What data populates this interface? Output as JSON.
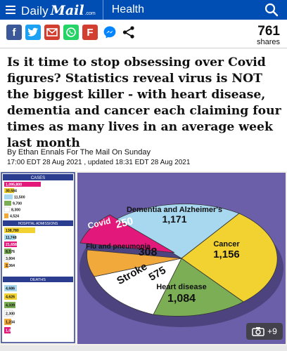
{
  "header": {
    "brand_daily": "Daily",
    "brand_mail": "Mail",
    "brand_com": ".com",
    "section": "Health"
  },
  "share": {
    "facebook": "f",
    "twitter": "t",
    "flipboard": "F",
    "count": "761",
    "count_label": "shares"
  },
  "headline": "Is it time to stop obsessing over Covid figures? Statistics reveal virus is NOT the biggest killer - with heart disease, dementia and cancer each claiming four times as many lives in an average week last month",
  "byline": "By Ethan Ennals For The Mail On Sunday",
  "dateline": "17:00 EDT 28 Aug 2021 , updated 18:31 EDT 28 Aug 2021",
  "infographic": {
    "sidebar": {
      "cases_header": "CASES",
      "admissions_header": "HOSPITAL ADMISSIONS",
      "deaths_header": "DEATHS",
      "cases": [
        "1,095,800",
        "30,584",
        "11,500",
        "9,700",
        "8,300",
        "4,524"
      ],
      "admissions": [
        "138,780",
        "11,748",
        "21,658",
        "8,576",
        "3,004",
        "2,364"
      ],
      "deaths": [
        "4,686",
        "4,626",
        "4,339",
        "2,300",
        "1,234",
        "1,002"
      ]
    },
    "pie": [
      {
        "label": "Dementia and Alzheimer's",
        "value": "1,171",
        "color": "#a8d8f0"
      },
      {
        "label": "Cancer",
        "value": "1,156",
        "color": "#f2d230"
      },
      {
        "label": "Heart disease",
        "value": "1,084",
        "color": "#7cae55"
      },
      {
        "label": "Stroke",
        "value": "575",
        "color": "#ffffff"
      },
      {
        "label": "Flu and pneumonia",
        "value": "308",
        "color": "#f2a93b"
      },
      {
        "label": "Covid",
        "value": "250",
        "color": "#e2187a"
      }
    ],
    "photo_count": "+9"
  }
}
